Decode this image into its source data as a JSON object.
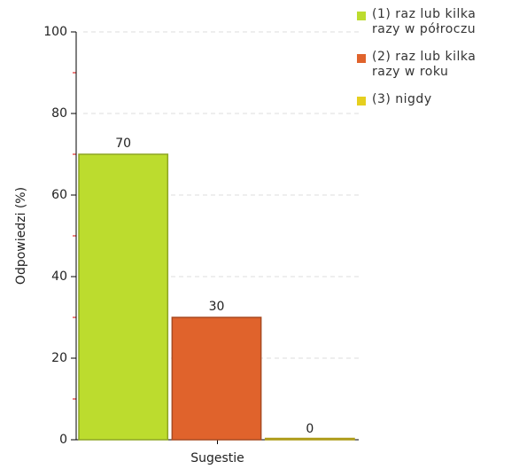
{
  "chart_data": {
    "type": "bar",
    "y_label": "Odpowiedzi (%)",
    "categories": [
      "Sugestie"
    ],
    "series": [
      {
        "name": "(1) raz lub kilka razy w półroczu",
        "color": "#bcdc2e",
        "values": [
          70
        ]
      },
      {
        "name": "(2) raz lub kilka razy w roku",
        "color": "#e0632c",
        "values": [
          30
        ]
      },
      {
        "name": "(3) nigdy",
        "color": "#e6cf1f",
        "values": [
          0
        ]
      }
    ],
    "ylim": [
      0,
      100
    ],
    "yticks": [
      0,
      20,
      40,
      60,
      80,
      100
    ],
    "minor_yticks": [
      10,
      30,
      50,
      70,
      90
    ],
    "grid": true,
    "legend": "right"
  }
}
